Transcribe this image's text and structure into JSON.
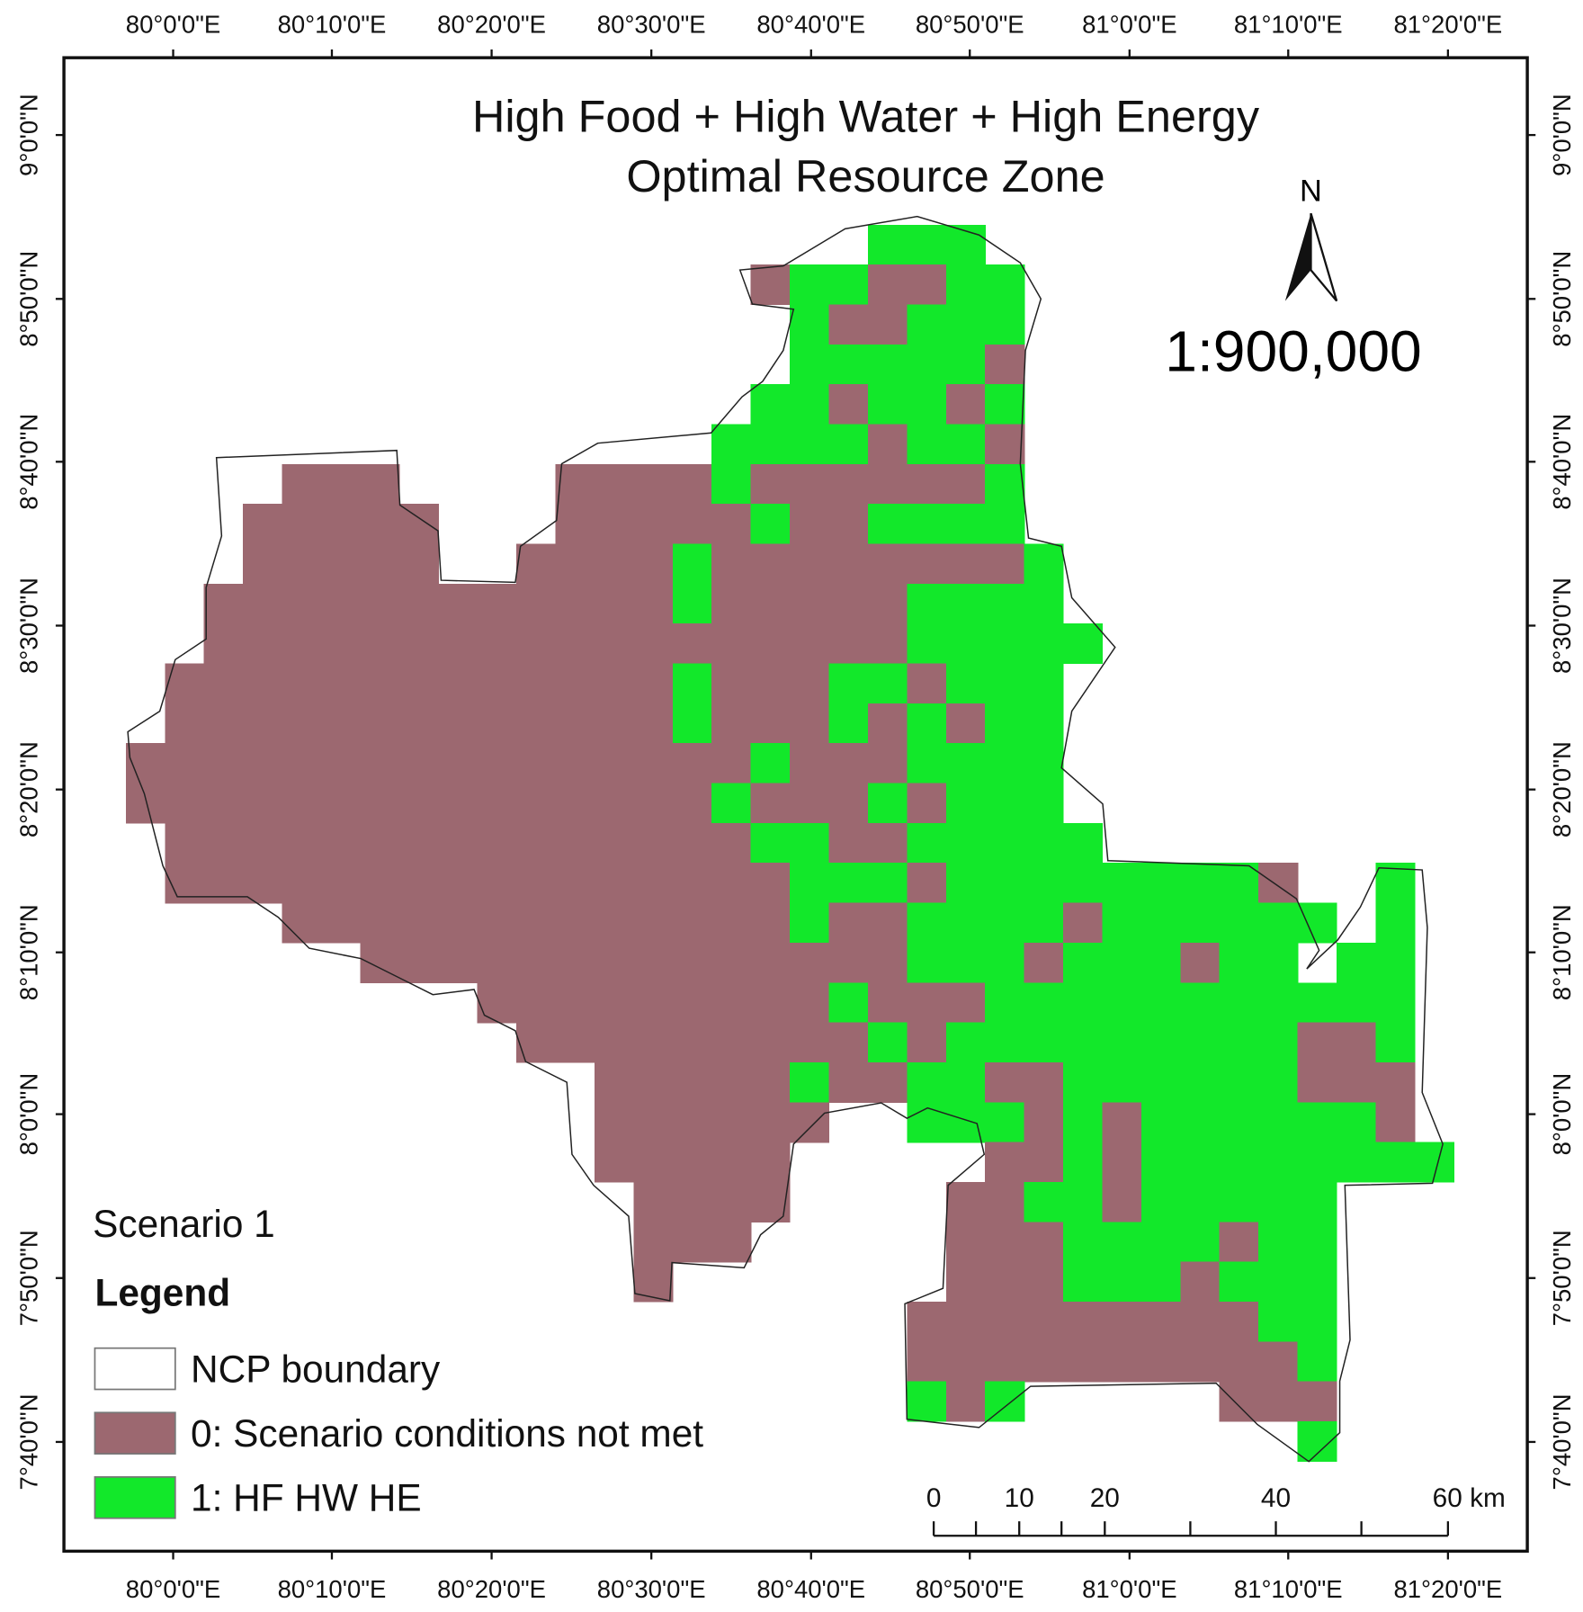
{
  "title": [
    "High Food + High Water + High Energy",
    "Optimal Resource Zone"
  ],
  "scale": "1:900,000",
  "north": "N",
  "lon_labels": [
    "80°0'0\"E",
    "80°10'0\"E",
    "80°20'0\"E",
    "80°30'0\"E",
    "80°40'0\"E",
    "80°50'0\"E",
    "81°0'0\"E",
    "81°10'0\"E",
    "81°20'0\"E"
  ],
  "lat_labels": [
    "9°0'0\"N",
    "8°50'0\"N",
    "8°40'0\"N",
    "8°30'0\"N",
    "8°20'0\"N",
    "8°10'0\"N",
    "8°0'0\"N",
    "7°50'0\"N",
    "7°40'0\"N"
  ],
  "scenario": "Scenario 1",
  "legend": {
    "title": "Legend",
    "items": [
      {
        "label": "NCP boundary",
        "color": "#ffffff"
      },
      {
        "label": "0: Scenario conditions not met",
        "color": "#9c6870"
      },
      {
        "label": "1: HF HW HE",
        "color": "#12e82a"
      }
    ]
  },
  "scale_bar": [
    "0",
    "10",
    "20",
    "40",
    "60 km"
  ],
  "raster": {
    "rows": [
      [
        null,
        null,
        null,
        null,
        null,
        null,
        null,
        null,
        null,
        null,
        null,
        null,
        null,
        null,
        null,
        null,
        null,
        null,
        null,
        1,
        1,
        1,
        null,
        null,
        null,
        null,
        null,
        null,
        null,
        null,
        null,
        null,
        null,
        null
      ],
      [
        null,
        null,
        null,
        null,
        null,
        null,
        null,
        null,
        null,
        null,
        null,
        null,
        null,
        null,
        null,
        null,
        0,
        1,
        1,
        0,
        0,
        1,
        1,
        null,
        null,
        null,
        null,
        null,
        null,
        null,
        null,
        null,
        null,
        null
      ],
      [
        null,
        null,
        null,
        null,
        null,
        null,
        null,
        null,
        null,
        null,
        null,
        null,
        null,
        null,
        null,
        null,
        null,
        1,
        0,
        0,
        1,
        1,
        1,
        null,
        null,
        null,
        null,
        null,
        null,
        null,
        null,
        null,
        null,
        null
      ],
      [
        null,
        null,
        null,
        null,
        null,
        null,
        null,
        null,
        null,
        null,
        null,
        null,
        null,
        null,
        null,
        null,
        null,
        1,
        1,
        1,
        1,
        1,
        0,
        null,
        null,
        null,
        null,
        null,
        null,
        null,
        null,
        null,
        null,
        null
      ],
      [
        null,
        null,
        null,
        null,
        null,
        null,
        null,
        null,
        null,
        null,
        null,
        null,
        null,
        null,
        null,
        null,
        1,
        1,
        0,
        1,
        1,
        0,
        1,
        null,
        null,
        null,
        null,
        null,
        null,
        null,
        null,
        null,
        null,
        null
      ],
      [
        null,
        null,
        null,
        null,
        null,
        null,
        null,
        null,
        null,
        null,
        null,
        null,
        null,
        null,
        null,
        1,
        1,
        1,
        1,
        0,
        1,
        1,
        0,
        null,
        null,
        null,
        null,
        null,
        null,
        null,
        null,
        null,
        null,
        null
      ],
      [
        null,
        null,
        null,
        null,
        0,
        0,
        0,
        null,
        null,
        null,
        null,
        0,
        0,
        0,
        0,
        1,
        0,
        0,
        0,
        0,
        0,
        0,
        1,
        null,
        null,
        null,
        null,
        null,
        null,
        null,
        null,
        null,
        null,
        null
      ],
      [
        null,
        null,
        null,
        0,
        0,
        0,
        0,
        0,
        null,
        null,
        null,
        0,
        0,
        0,
        0,
        0,
        1,
        0,
        0,
        1,
        1,
        1,
        1,
        null,
        null,
        null,
        null,
        null,
        null,
        null,
        null,
        null,
        null,
        null
      ],
      [
        null,
        null,
        null,
        0,
        0,
        0,
        0,
        0,
        null,
        null,
        0,
        0,
        0,
        0,
        1,
        0,
        0,
        0,
        0,
        0,
        0,
        0,
        0,
        1,
        null,
        null,
        null,
        null,
        null,
        null,
        null,
        null,
        null,
        null
      ],
      [
        null,
        null,
        0,
        0,
        0,
        0,
        0,
        0,
        0,
        0,
        0,
        0,
        0,
        0,
        1,
        0,
        0,
        0,
        0,
        0,
        1,
        1,
        1,
        1,
        null,
        null,
        null,
        null,
        null,
        null,
        null,
        null,
        null,
        null
      ],
      [
        null,
        null,
        0,
        0,
        0,
        0,
        0,
        0,
        0,
        0,
        0,
        0,
        0,
        0,
        0,
        0,
        0,
        0,
        0,
        0,
        1,
        1,
        1,
        1,
        1,
        null,
        null,
        null,
        null,
        null,
        null,
        null,
        null,
        null
      ],
      [
        null,
        0,
        0,
        0,
        0,
        0,
        0,
        0,
        0,
        0,
        0,
        0,
        0,
        0,
        1,
        0,
        0,
        0,
        1,
        1,
        0,
        1,
        1,
        1,
        null,
        null,
        null,
        null,
        null,
        null,
        null,
        null,
        null,
        null
      ],
      [
        null,
        0,
        0,
        0,
        0,
        0,
        0,
        0,
        0,
        0,
        0,
        0,
        0,
        0,
        1,
        0,
        0,
        0,
        1,
        0,
        1,
        0,
        1,
        1,
        null,
        null,
        null,
        null,
        null,
        null,
        null,
        null,
        null,
        null
      ],
      [
        0,
        0,
        0,
        0,
        0,
        0,
        0,
        0,
        0,
        0,
        0,
        0,
        0,
        0,
        0,
        0,
        1,
        0,
        0,
        0,
        1,
        1,
        1,
        1,
        null,
        null,
        null,
        null,
        null,
        null,
        null,
        null,
        null,
        null
      ],
      [
        0,
        0,
        0,
        0,
        0,
        0,
        0,
        0,
        0,
        0,
        0,
        0,
        0,
        0,
        0,
        1,
        0,
        0,
        0,
        1,
        0,
        1,
        1,
        1,
        null,
        null,
        null,
        null,
        null,
        null,
        null,
        null,
        null,
        null
      ],
      [
        null,
        0,
        0,
        0,
        0,
        0,
        0,
        0,
        0,
        0,
        0,
        0,
        0,
        0,
        0,
        0,
        1,
        1,
        0,
        0,
        1,
        1,
        1,
        1,
        1,
        null,
        null,
        null,
        null,
        null,
        null,
        null,
        null,
        null
      ],
      [
        null,
        0,
        0,
        0,
        0,
        0,
        0,
        0,
        0,
        0,
        0,
        0,
        0,
        0,
        0,
        0,
        0,
        1,
        1,
        1,
        0,
        1,
        1,
        1,
        1,
        1,
        1,
        1,
        1,
        0,
        null,
        null,
        1,
        null
      ],
      [
        null,
        null,
        null,
        null,
        0,
        0,
        0,
        0,
        0,
        0,
        0,
        0,
        0,
        0,
        0,
        0,
        0,
        1,
        0,
        0,
        1,
        1,
        1,
        1,
        0,
        1,
        1,
        1,
        1,
        1,
        1,
        null,
        1,
        null
      ],
      [
        null,
        null,
        null,
        null,
        null,
        null,
        0,
        0,
        0,
        0,
        0,
        0,
        0,
        0,
        0,
        0,
        0,
        0,
        0,
        0,
        1,
        1,
        1,
        0,
        1,
        1,
        1,
        0,
        1,
        1,
        null,
        1,
        1,
        null
      ],
      [
        null,
        null,
        null,
        null,
        null,
        null,
        null,
        null,
        null,
        0,
        0,
        0,
        0,
        0,
        0,
        0,
        0,
        0,
        1,
        0,
        0,
        0,
        1,
        1,
        1,
        1,
        1,
        1,
        1,
        1,
        1,
        1,
        1,
        null
      ],
      [
        null,
        null,
        null,
        null,
        null,
        null,
        null,
        null,
        null,
        null,
        0,
        0,
        0,
        0,
        0,
        0,
        0,
        0,
        0,
        1,
        0,
        1,
        1,
        1,
        1,
        1,
        1,
        1,
        1,
        1,
        0,
        0,
        1,
        null
      ],
      [
        null,
        null,
        null,
        null,
        null,
        null,
        null,
        null,
        null,
        null,
        null,
        null,
        0,
        0,
        0,
        0,
        0,
        1,
        0,
        0,
        1,
        1,
        0,
        0,
        1,
        1,
        1,
        1,
        1,
        1,
        0,
        0,
        0,
        null
      ],
      [
        null,
        null,
        null,
        null,
        null,
        null,
        null,
        null,
        null,
        null,
        null,
        null,
        0,
        0,
        0,
        0,
        0,
        0,
        null,
        null,
        1,
        1,
        1,
        0,
        1,
        0,
        1,
        1,
        1,
        1,
        1,
        1,
        0,
        null
      ],
      [
        null,
        null,
        null,
        null,
        null,
        null,
        null,
        null,
        null,
        null,
        null,
        null,
        0,
        0,
        0,
        0,
        0,
        null,
        null,
        null,
        null,
        null,
        0,
        0,
        1,
        0,
        1,
        1,
        1,
        1,
        1,
        1,
        1,
        1
      ],
      [
        null,
        null,
        null,
        null,
        null,
        null,
        null,
        null,
        null,
        null,
        null,
        null,
        null,
        0,
        0,
        0,
        0,
        null,
        null,
        null,
        null,
        0,
        0,
        1,
        1,
        0,
        1,
        1,
        1,
        1,
        1,
        null,
        null,
        null
      ],
      [
        null,
        null,
        null,
        null,
        null,
        null,
        null,
        null,
        null,
        null,
        null,
        null,
        null,
        0,
        0,
        0,
        null,
        null,
        null,
        null,
        null,
        0,
        0,
        0,
        1,
        1,
        1,
        1,
        0,
        1,
        1,
        null,
        null,
        null
      ],
      [
        null,
        null,
        null,
        null,
        null,
        null,
        null,
        null,
        null,
        null,
        null,
        null,
        null,
        0,
        null,
        null,
        null,
        null,
        null,
        null,
        null,
        0,
        0,
        0,
        1,
        1,
        1,
        0,
        1,
        1,
        1,
        null,
        null,
        null
      ],
      [
        null,
        null,
        null,
        null,
        null,
        null,
        null,
        null,
        null,
        null,
        null,
        null,
        null,
        null,
        null,
        null,
        null,
        null,
        null,
        null,
        0,
        0,
        0,
        0,
        0,
        0,
        0,
        0,
        0,
        1,
        1,
        null,
        null,
        null
      ],
      [
        null,
        null,
        null,
        null,
        null,
        null,
        null,
        null,
        null,
        null,
        null,
        null,
        null,
        null,
        null,
        null,
        null,
        null,
        null,
        null,
        0,
        0,
        0,
        0,
        0,
        0,
        0,
        0,
        0,
        0,
        1,
        null,
        null,
        null
      ],
      [
        null,
        null,
        null,
        null,
        null,
        null,
        null,
        null,
        null,
        null,
        null,
        null,
        null,
        null,
        null,
        null,
        null,
        null,
        null,
        null,
        1,
        0,
        1,
        null,
        null,
        null,
        null,
        null,
        0,
        0,
        0,
        null,
        null,
        null
      ],
      [
        null,
        null,
        null,
        null,
        null,
        null,
        null,
        null,
        null,
        null,
        null,
        null,
        null,
        null,
        null,
        null,
        null,
        null,
        null,
        null,
        null,
        null,
        null,
        null,
        null,
        null,
        null,
        null,
        null,
        null,
        1,
        null,
        null,
        null
      ]
    ]
  }
}
